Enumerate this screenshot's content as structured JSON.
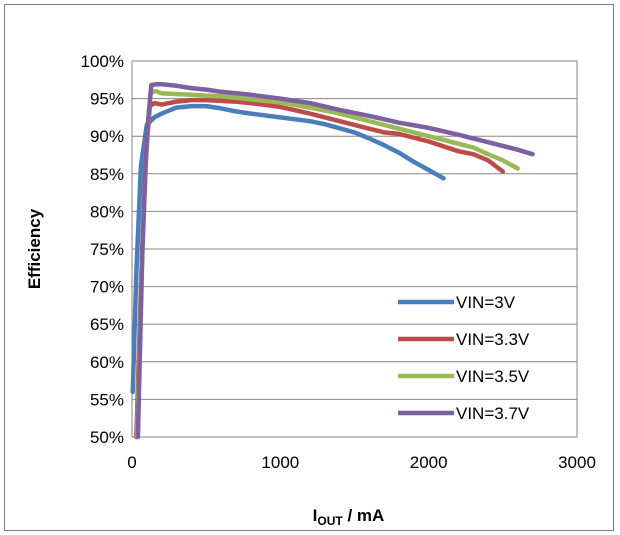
{
  "chart_data": {
    "type": "line",
    "title": "",
    "xlabel": {
      "main": "I",
      "sub": "OUT",
      "suffix": " / mA"
    },
    "ylabel": "Efficiency",
    "xlim": [
      0,
      3000
    ],
    "ylim": [
      0.5,
      1.0
    ],
    "xticks": [
      0,
      1000,
      2000,
      3000
    ],
    "xtick_labels": [
      "0",
      "1000",
      "2000",
      "3000"
    ],
    "yticks": [
      0.5,
      0.55,
      0.6,
      0.65,
      0.7,
      0.75,
      0.8,
      0.85,
      0.9,
      0.95,
      1.0
    ],
    "ytick_labels": [
      "50%",
      "55%",
      "60%",
      "65%",
      "70%",
      "75%",
      "80%",
      "85%",
      "90%",
      "95%",
      "100%"
    ],
    "grid": "horizontal",
    "legend_position": "bottom-right",
    "series": [
      {
        "name": "VIN=3V",
        "color": "#4a7ebb",
        "x": [
          5,
          30,
          60,
          100,
          150,
          200,
          300,
          400,
          500,
          600,
          700,
          800,
          1000,
          1200,
          1300,
          1500,
          1600,
          1700,
          1800,
          1900,
          2000,
          2100
        ],
        "y": [
          0.56,
          0.72,
          0.86,
          0.915,
          0.925,
          0.93,
          0.938,
          0.94,
          0.94,
          0.937,
          0.933,
          0.93,
          0.925,
          0.92,
          0.916,
          0.905,
          0.897,
          0.888,
          0.878,
          0.866,
          0.855,
          0.844
        ]
      },
      {
        "name": "VIN=3.3V",
        "color": "#be4b48",
        "x": [
          30,
          60,
          90,
          120,
          150,
          200,
          300,
          400,
          500,
          600,
          700,
          800,
          1000,
          1200,
          1400,
          1600,
          1700,
          1800,
          2000,
          2200,
          2300,
          2400,
          2500
        ],
        "y": [
          0.5,
          0.7,
          0.86,
          0.94,
          0.944,
          0.942,
          0.946,
          0.948,
          0.948,
          0.947,
          0.946,
          0.944,
          0.939,
          0.93,
          0.92,
          0.91,
          0.905,
          0.903,
          0.893,
          0.88,
          0.876,
          0.868,
          0.853
        ]
      },
      {
        "name": "VIN=3.5V",
        "color": "#98b954",
        "x": [
          35,
          65,
          95,
          125,
          160,
          200,
          300,
          400,
          500,
          600,
          700,
          800,
          1000,
          1200,
          1400,
          1600,
          1800,
          2000,
          2200,
          2300,
          2400,
          2500,
          2600
        ],
        "y": [
          0.5,
          0.72,
          0.88,
          0.958,
          0.96,
          0.957,
          0.956,
          0.955,
          0.954,
          0.953,
          0.951,
          0.949,
          0.945,
          0.938,
          0.93,
          0.92,
          0.91,
          0.9,
          0.89,
          0.885,
          0.876,
          0.868,
          0.857
        ]
      },
      {
        "name": "VIN=3.7V",
        "color": "#7d60a0",
        "x": [
          40,
          70,
          100,
          130,
          160,
          200,
          300,
          400,
          500,
          600,
          700,
          800,
          1000,
          1200,
          1400,
          1600,
          1800,
          2000,
          2200,
          2400,
          2600,
          2700
        ],
        "y": [
          0.5,
          0.75,
          0.9,
          0.968,
          0.969,
          0.969,
          0.967,
          0.964,
          0.962,
          0.959,
          0.957,
          0.955,
          0.95,
          0.944,
          0.935,
          0.927,
          0.918,
          0.911,
          0.902,
          0.892,
          0.882,
          0.876
        ]
      }
    ]
  }
}
